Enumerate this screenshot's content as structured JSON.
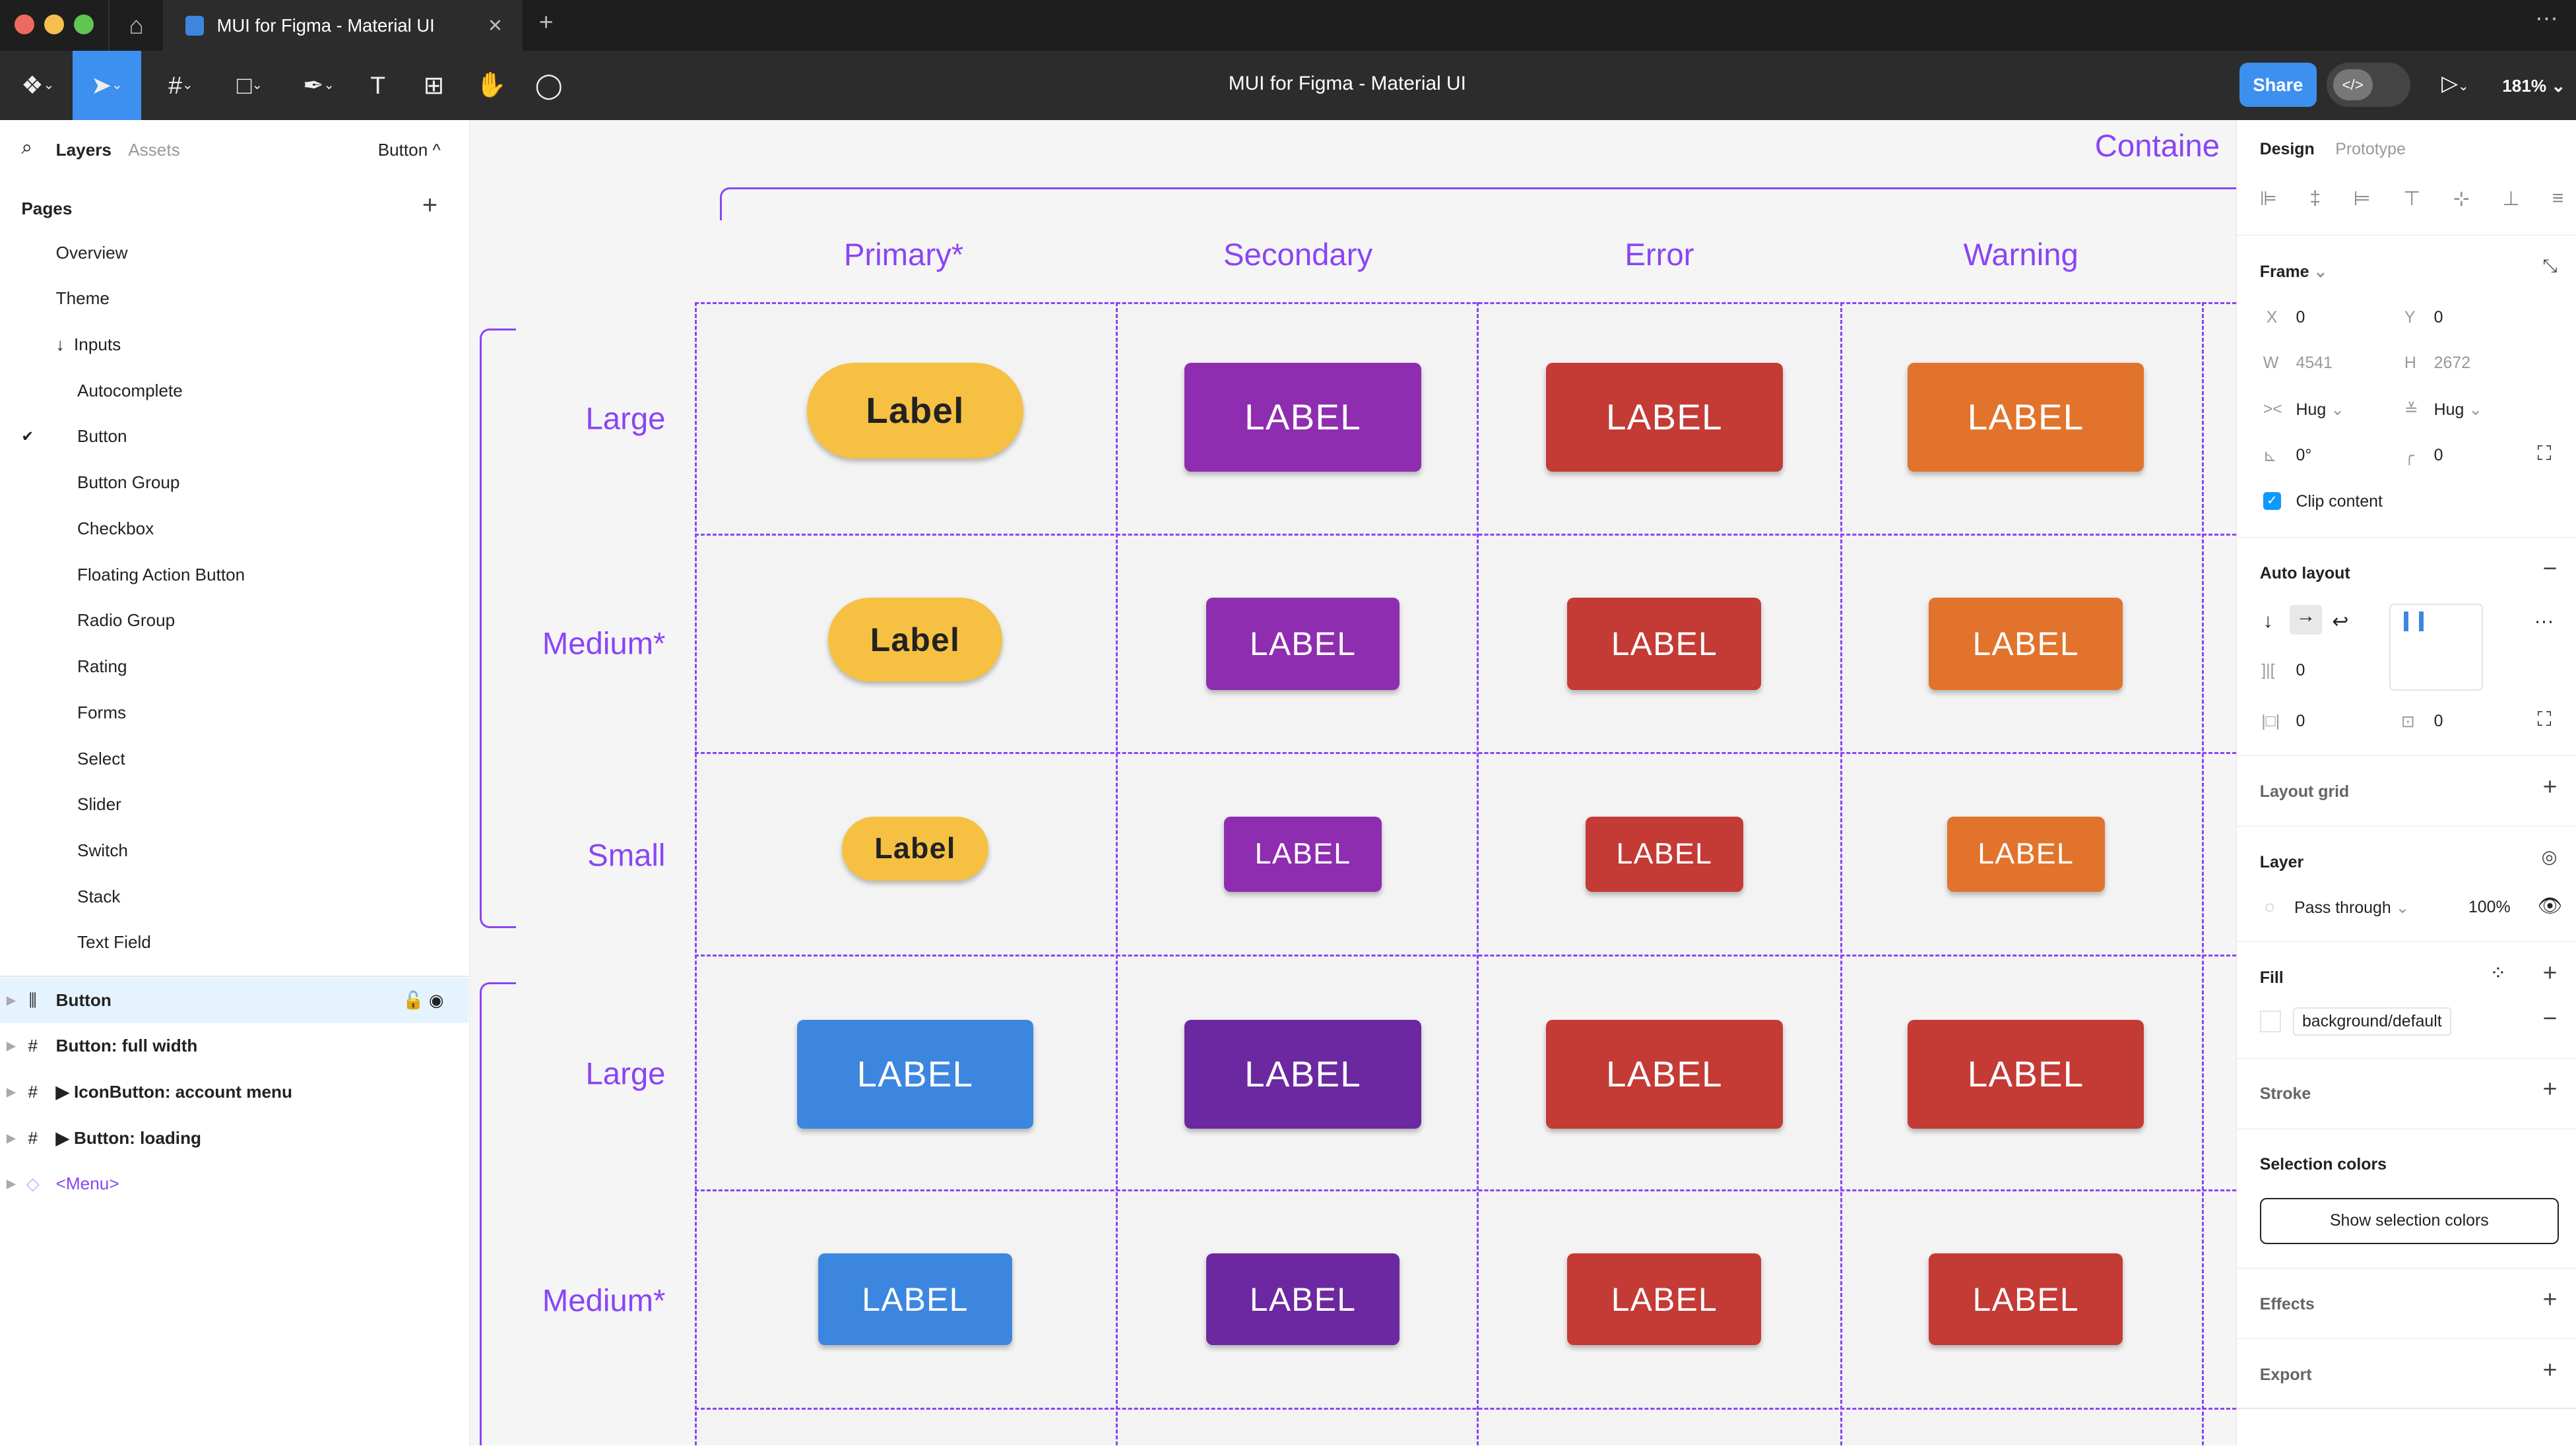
{
  "window": {
    "tab_title": "MUI for Figma - Material UI",
    "doc_title": "MUI for Figma - Material UI"
  },
  "toolbar": {
    "share": "Share",
    "zoom": "181%"
  },
  "left": {
    "tabs": [
      "Layers",
      "Assets"
    ],
    "page_selector": "Button",
    "pages_title": "Pages",
    "pages": [
      "Overview",
      "Theme",
      "Inputs",
      "Autocomplete",
      "Button",
      "Button Group",
      "Checkbox",
      "Floating Action Button",
      "Radio Group",
      "Rating",
      "Forms",
      "Select",
      "Slider",
      "Switch",
      "Stack",
      "Text Field"
    ],
    "current_page": "Button",
    "layers": [
      {
        "name": "Button",
        "icon": "auto-layout-icon",
        "selected": true
      },
      {
        "name": "Button: full width",
        "icon": "frame-icon"
      },
      {
        "name": "▶ IconButton: account menu",
        "icon": "frame-icon"
      },
      {
        "name": "▶ Button: loading",
        "icon": "frame-icon"
      },
      {
        "name": "<Menu>",
        "icon": "component-instance-icon",
        "purple": true
      }
    ]
  },
  "canvas": {
    "frame_title": "Containe",
    "columns": [
      "Primary*",
      "Secondary",
      "Error",
      "Warning"
    ],
    "rows": [
      {
        "label": "Large",
        "size": "large",
        "buttons": [
          "Label",
          "LABEL",
          "LABEL",
          "LABEL"
        ],
        "colors": [
          "#f6c142",
          "#8e2db0",
          "#c43a35",
          "#e2732c"
        ]
      },
      {
        "label": "Medium*",
        "size": "medium",
        "buttons": [
          "Label",
          "LABEL",
          "LABEL",
          "LABEL"
        ],
        "colors": [
          "#f6c142",
          "#8e2db0",
          "#c43a35",
          "#e2732c"
        ]
      },
      {
        "label": "Small",
        "size": "small",
        "buttons": [
          "Label",
          "LABEL",
          "LABEL",
          "LABEL"
        ],
        "colors": [
          "#f6c142",
          "#8e2db0",
          "#c43a35",
          "#e2732c"
        ]
      },
      {
        "label": "Large",
        "size": "large",
        "buttons": [
          "LABEL",
          "LABEL",
          "LABEL",
          "LABEL"
        ],
        "colors": [
          "#3d86e0",
          "#6b28a0",
          "#c43a35",
          "#c43a35"
        ]
      },
      {
        "label": "Medium*",
        "size": "medium",
        "buttons": [
          "LABEL",
          "LABEL",
          "LABEL",
          "LABEL"
        ],
        "colors": [
          "#3d86e0",
          "#6b28a0",
          "#c43a35",
          "#c43a35"
        ]
      }
    ]
  },
  "right": {
    "tabs": [
      "Design",
      "Prototype"
    ],
    "frame": {
      "title": "Frame",
      "x": "0",
      "y": "0",
      "w": "4541",
      "h": "2672",
      "hug_w": "Hug",
      "hug_h": "Hug",
      "rotation": "0°",
      "radius": "0",
      "clip": "Clip content",
      "clip_checked": true
    },
    "auto_layout": {
      "title": "Auto layout",
      "gap": "0",
      "pad_h": "0",
      "pad_v": "0"
    },
    "layout_grid": "Layout grid",
    "layer": {
      "title": "Layer",
      "blend": "Pass through",
      "opacity": "100%"
    },
    "fill": {
      "title": "Fill",
      "style": "background/default"
    },
    "stroke": "Stroke",
    "selection_colors": {
      "title": "Selection colors",
      "button": "Show selection colors"
    },
    "effects": "Effects",
    "export": "Export"
  },
  "colors": {
    "accent": "#0d99ff",
    "purple": "#8a45f5"
  }
}
